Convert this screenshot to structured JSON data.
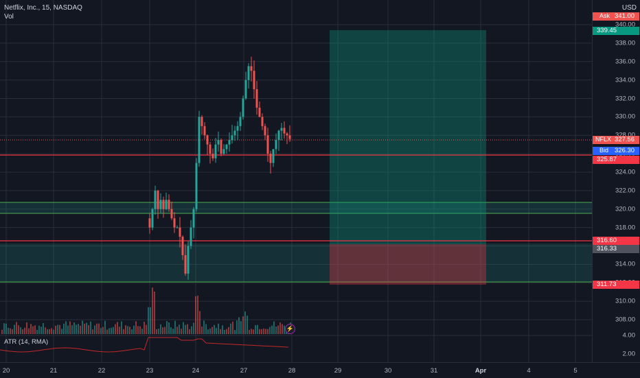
{
  "symbol": {
    "name": "Netflix, Inc.",
    "interval": "15",
    "exchange": "NASDAQ",
    "title": "Netflix, Inc., 15, NASDAQ"
  },
  "indicators": {
    "volume_label": "Vol",
    "atr_label": "ATR (14, RMA)"
  },
  "price_axis": {
    "currency": "USD",
    "ticks": [
      "340.00",
      "338.00",
      "336.00",
      "334.00",
      "332.00",
      "330.00",
      "328.00",
      "326.00",
      "324.00",
      "322.00",
      "320.00",
      "318.00",
      "316.00",
      "314.00",
      "312.00",
      "310.00",
      "308.00"
    ],
    "atr_ticks": [
      "4.00",
      "2.00"
    ]
  },
  "time_axis": {
    "labels": [
      "20",
      "21",
      "22",
      "23",
      "24",
      "27",
      "28",
      "29",
      "30",
      "31",
      "Apr",
      "4",
      "5"
    ]
  },
  "price_labels": {
    "ask": {
      "label": "Ask",
      "value": "341.00"
    },
    "target": {
      "value": "339.45"
    },
    "last": {
      "label": "NFLX",
      "value": "327.56"
    },
    "bid": {
      "label": "Bid",
      "value": "326.30"
    },
    "line_red": {
      "value": "325.87"
    },
    "entry": {
      "value": "316.60"
    },
    "gray": {
      "value": "316.33"
    },
    "stop": {
      "value": "311.73"
    }
  },
  "colors": {
    "up": "#26a69a",
    "down": "#ef5350",
    "background": "#131722",
    "accent_green": "#089981",
    "accent_red": "#f23645"
  },
  "icons": {
    "alert": "lightning-bolt-icon"
  }
}
